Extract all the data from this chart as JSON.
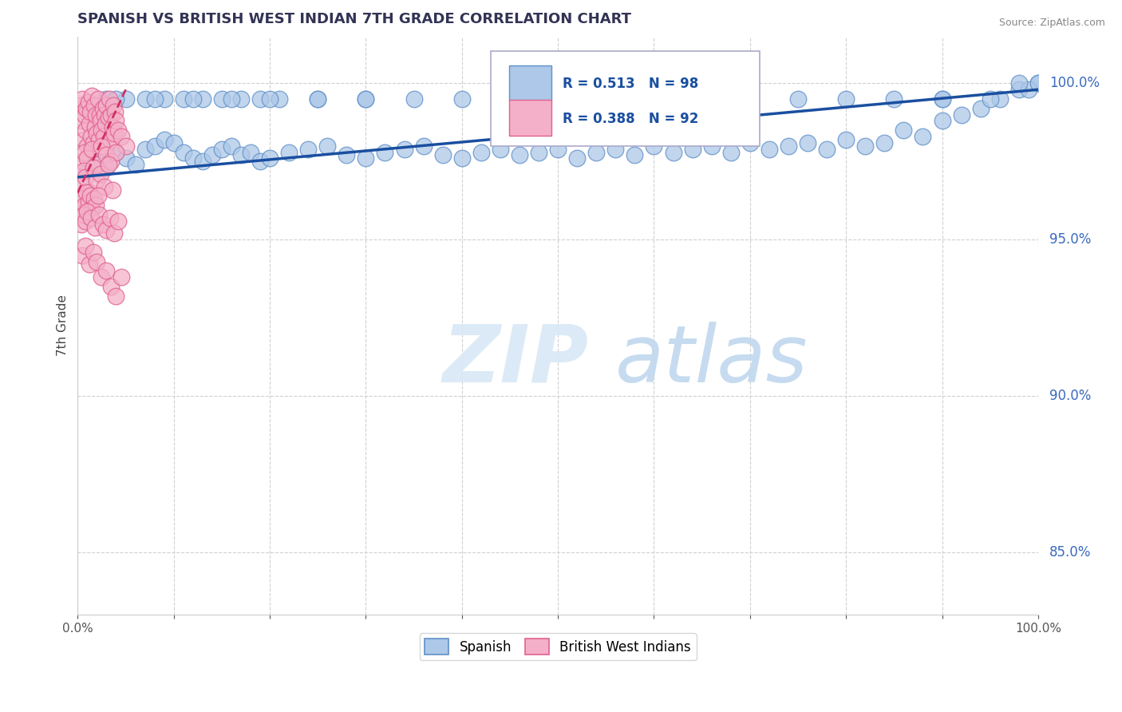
{
  "title": "SPANISH VS BRITISH WEST INDIAN 7TH GRADE CORRELATION CHART",
  "source": "Source: ZipAtlas.com",
  "ylabel": "7th Grade",
  "R_blue": 0.513,
  "N_blue": 98,
  "R_pink": 0.388,
  "N_pink": 92,
  "blue_color": "#adc8e8",
  "pink_color": "#f4b0c8",
  "blue_edge": "#6090c8",
  "pink_edge": "#e06090",
  "trend_blue": "#1a4fa0",
  "trend_pink": "#d03060",
  "legend_text_color": "#1a4fa0",
  "yaxis_label_color": "#3a6abf",
  "xaxis_label_color": "#555555",
  "watermark_ZIP_color": "#d8e8f5",
  "watermark_atlas_color": "#c0d8ee",
  "blue_x": [
    1,
    2,
    3,
    4,
    5,
    6,
    7,
    8,
    9,
    10,
    11,
    12,
    13,
    14,
    15,
    16,
    17,
    18,
    19,
    20,
    22,
    24,
    26,
    28,
    30,
    32,
    34,
    36,
    38,
    40,
    42,
    44,
    46,
    48,
    50,
    52,
    54,
    56,
    58,
    60,
    62,
    64,
    66,
    68,
    70,
    72,
    74,
    76,
    78,
    80,
    82,
    84,
    86,
    88,
    90,
    92,
    94,
    96,
    98,
    100,
    3,
    5,
    7,
    9,
    11,
    13,
    15,
    17,
    19,
    21,
    25,
    30,
    35,
    40,
    45,
    50,
    55,
    60,
    65,
    70,
    75,
    80,
    85,
    90,
    95,
    99,
    4,
    8,
    12,
    16,
    20,
    25,
    30,
    50,
    70,
    90,
    100,
    98
  ],
  "blue_y": [
    97.2,
    97.5,
    97.3,
    97.8,
    97.6,
    97.4,
    97.9,
    98.0,
    98.2,
    98.1,
    97.8,
    97.6,
    97.5,
    97.7,
    97.9,
    98.0,
    97.7,
    97.8,
    97.5,
    97.6,
    97.8,
    97.9,
    98.0,
    97.7,
    97.6,
    97.8,
    97.9,
    98.0,
    97.7,
    97.6,
    97.8,
    97.9,
    97.7,
    97.8,
    97.9,
    97.6,
    97.8,
    97.9,
    97.7,
    98.0,
    97.8,
    97.9,
    98.0,
    97.8,
    98.1,
    97.9,
    98.0,
    98.1,
    97.9,
    98.2,
    98.0,
    98.1,
    98.5,
    98.3,
    98.8,
    99.0,
    99.2,
    99.5,
    99.8,
    100.0,
    99.5,
    99.5,
    99.5,
    99.5,
    99.5,
    99.5,
    99.5,
    99.5,
    99.5,
    99.5,
    99.5,
    99.5,
    99.5,
    99.5,
    99.5,
    99.5,
    99.5,
    99.5,
    99.5,
    99.5,
    99.5,
    99.5,
    99.5,
    99.5,
    99.5,
    99.8,
    99.5,
    99.5,
    99.5,
    99.5,
    99.5,
    99.5,
    99.5,
    99.5,
    99.5,
    99.5,
    100.0,
    100.0
  ],
  "pink_x": [
    0.3,
    0.4,
    0.5,
    0.6,
    0.7,
    0.8,
    0.9,
    1.0,
    1.1,
    1.2,
    1.3,
    1.4,
    1.5,
    1.6,
    1.7,
    1.8,
    1.9,
    2.0,
    2.1,
    2.2,
    2.3,
    2.4,
    2.5,
    2.6,
    2.7,
    2.8,
    2.9,
    3.0,
    3.1,
    3.2,
    3.3,
    3.4,
    3.5,
    3.6,
    3.7,
    3.8,
    3.9,
    4.0,
    4.2,
    4.5,
    5.0,
    0.5,
    0.7,
    1.0,
    1.5,
    2.0,
    2.5,
    3.0,
    3.5,
    4.0,
    0.4,
    0.6,
    0.8,
    1.2,
    1.6,
    2.0,
    2.4,
    2.8,
    3.2,
    3.6,
    0.3,
    0.5,
    0.7,
    0.9,
    1.1,
    1.3,
    1.5,
    1.7,
    1.9,
    2.1,
    0.4,
    0.6,
    0.8,
    1.0,
    1.4,
    1.8,
    2.2,
    2.6,
    3.0,
    3.4,
    3.8,
    4.2,
    0.5,
    0.8,
    1.2,
    1.6,
    2.0,
    2.5,
    3.0,
    3.5,
    4.0,
    4.5
  ],
  "pink_y": [
    99.3,
    98.8,
    99.5,
    98.2,
    99.0,
    98.5,
    99.2,
    98.0,
    99.4,
    98.7,
    99.1,
    98.3,
    99.6,
    98.1,
    99.3,
    98.6,
    99.0,
    98.4,
    99.5,
    98.2,
    99.0,
    98.8,
    98.5,
    99.2,
    98.3,
    99.0,
    98.7,
    99.3,
    98.1,
    98.9,
    99.5,
    98.2,
    99.0,
    98.6,
    99.3,
    98.4,
    99.1,
    98.8,
    98.5,
    98.3,
    98.0,
    97.5,
    97.8,
    97.6,
    97.9,
    97.4,
    98.0,
    97.7,
    97.5,
    97.8,
    96.8,
    97.2,
    97.0,
    96.5,
    97.3,
    96.9,
    97.1,
    96.7,
    97.4,
    96.6,
    96.0,
    96.3,
    96.1,
    96.5,
    96.2,
    96.4,
    96.0,
    96.3,
    96.1,
    96.4,
    95.5,
    95.8,
    95.6,
    95.9,
    95.7,
    95.4,
    95.8,
    95.5,
    95.3,
    95.7,
    95.2,
    95.6,
    94.5,
    94.8,
    94.2,
    94.6,
    94.3,
    93.8,
    94.0,
    93.5,
    93.2,
    93.8
  ],
  "blue_trend_x0": 0,
  "blue_trend_x1": 100,
  "blue_trend_y0": 97.0,
  "blue_trend_y1": 99.8,
  "pink_trend_x0": 0,
  "pink_trend_x1": 5,
  "pink_trend_y0": 96.5,
  "pink_trend_y1": 99.8,
  "xlim": [
    0,
    100
  ],
  "ylim": [
    83,
    101.5
  ],
  "yticks": [
    85,
    90,
    95,
    100
  ],
  "xticks": [
    0,
    10,
    20,
    30,
    40,
    50,
    60,
    70,
    80,
    90,
    100
  ]
}
